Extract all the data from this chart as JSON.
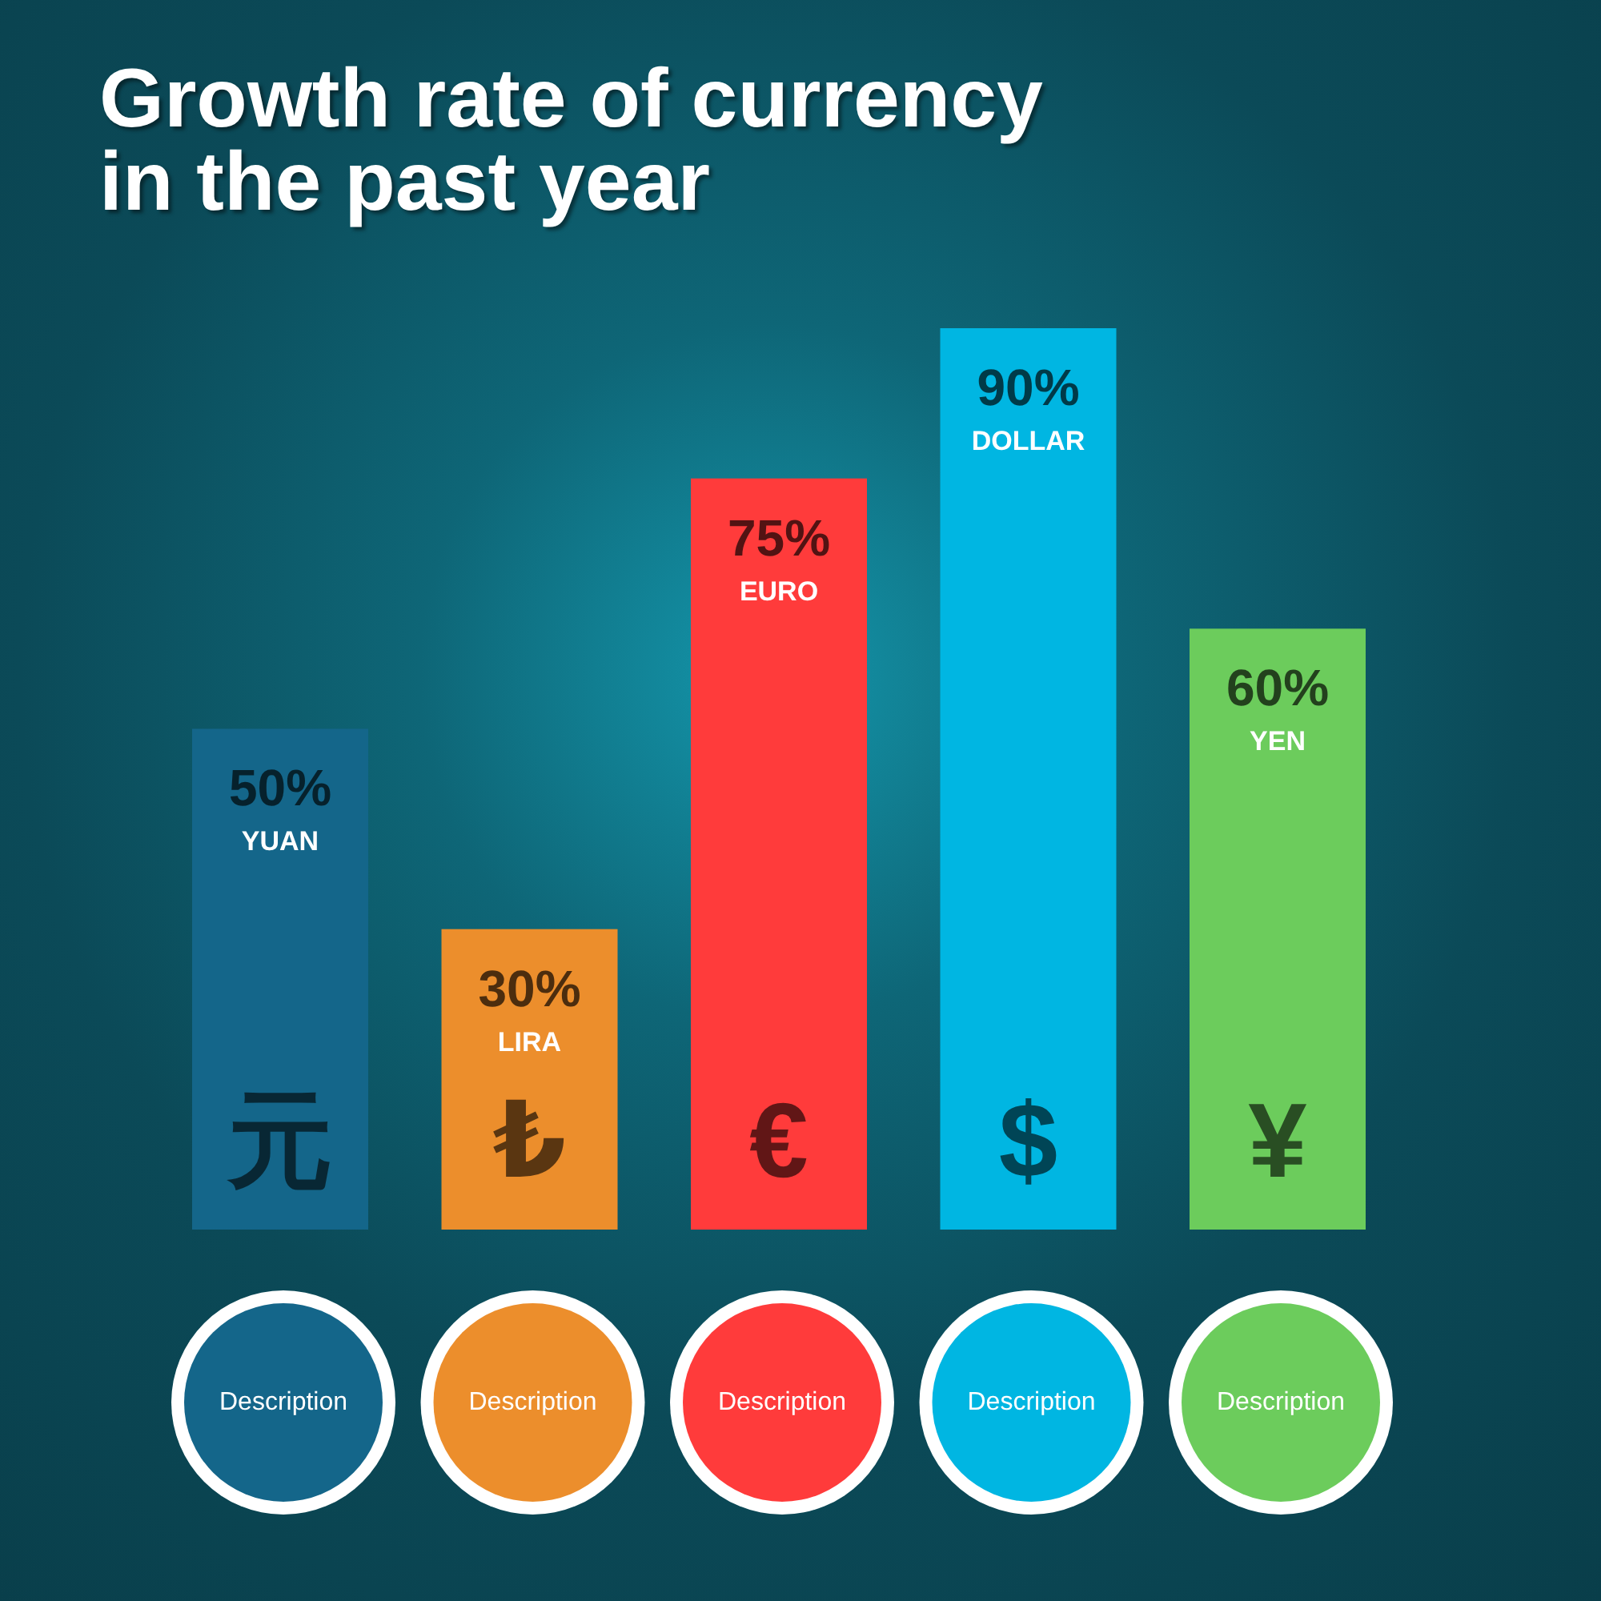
{
  "chart_data": {
    "type": "bar",
    "title": "Growth rate of currency in the past year",
    "categories": [
      "YUAN",
      "LIRA",
      "EURO",
      "DOLLAR",
      "YEN"
    ],
    "values": [
      50,
      30,
      75,
      90,
      60
    ],
    "value_labels": [
      "50%",
      "30%",
      "75%",
      "90%",
      "60%"
    ],
    "colors": [
      "#14668a",
      "#ec8e2c",
      "#ff3b3b",
      "#00b6e2",
      "#6ccc5c"
    ],
    "annotations": [
      "元",
      "₺",
      "€",
      "$",
      "¥",
      "Description",
      "Description",
      "Description",
      "Description",
      "Description"
    ]
  }
}
